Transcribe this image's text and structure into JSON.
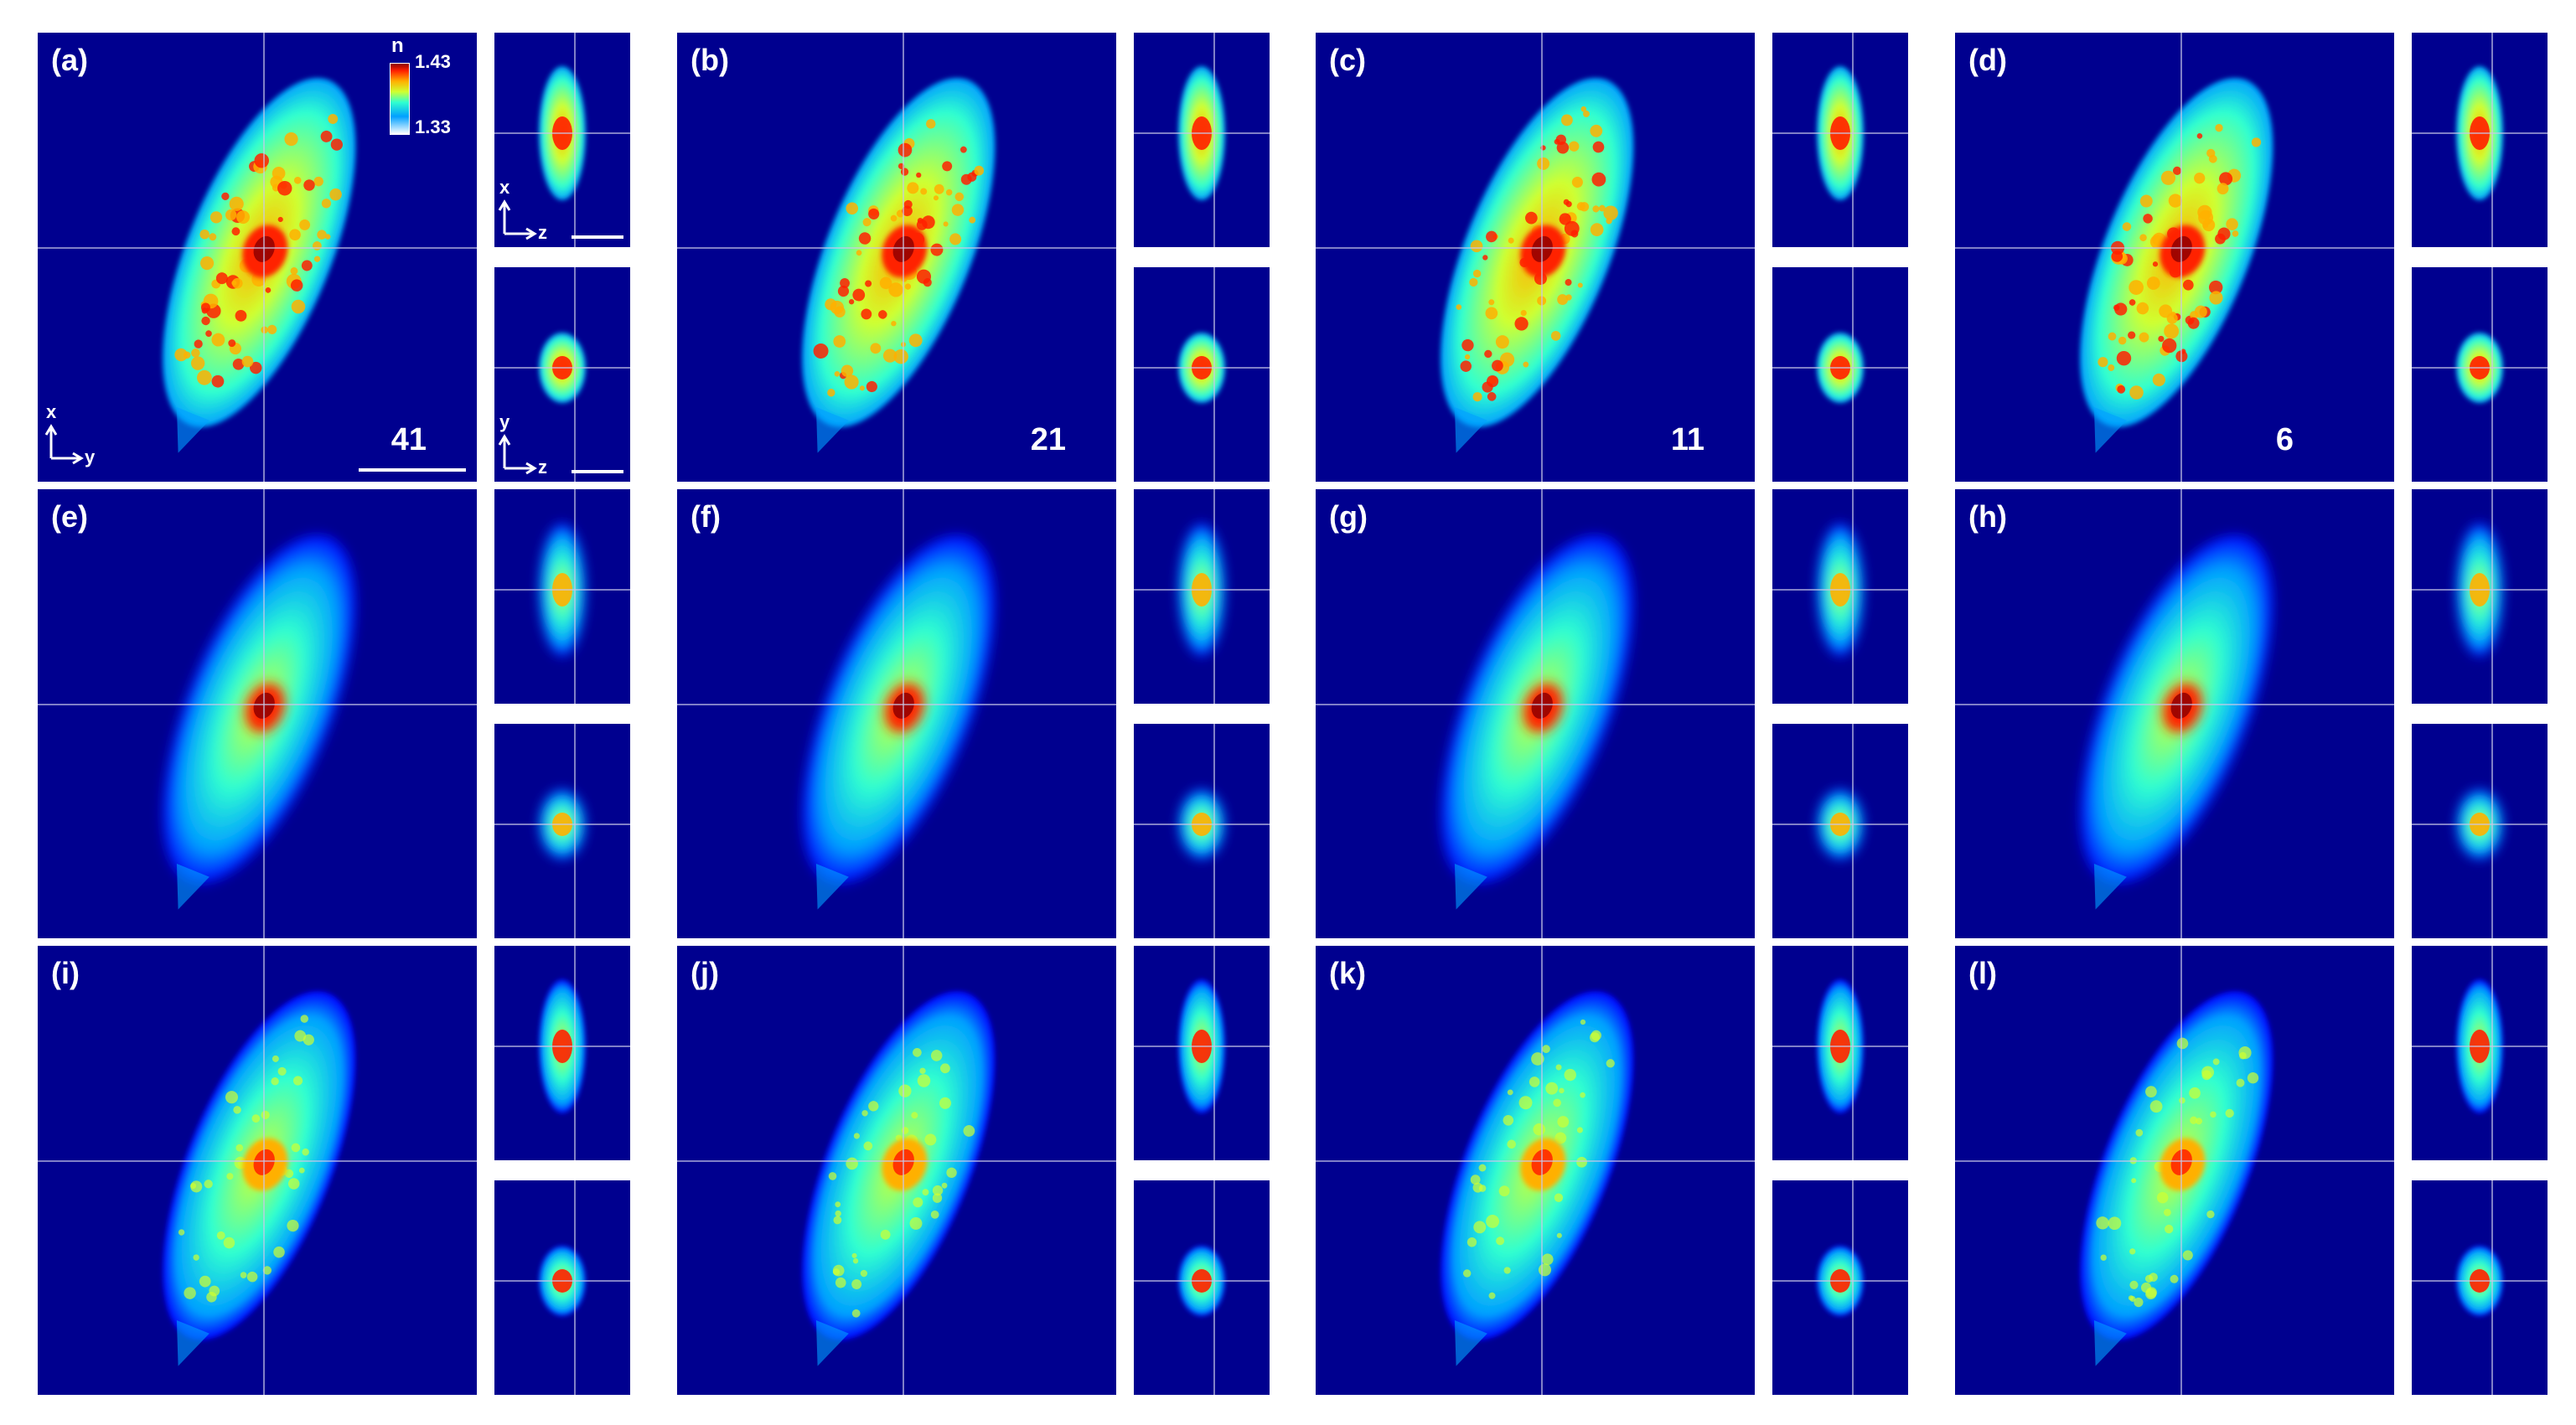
{
  "figure": {
    "colorbar": {
      "symbol": "n",
      "max_label": "1.43",
      "min_label": "1.33"
    },
    "axes": {
      "main": {
        "vertical": "x",
        "horizontal": "y"
      },
      "side_top": {
        "vertical": "x",
        "horizontal": "z"
      },
      "side_bottom": {
        "vertical": "y",
        "horizontal": "z"
      }
    },
    "colormap": [
      "#00008f",
      "#0000ff",
      "#00a0ff",
      "#30ffd0",
      "#d0ff30",
      "#ffb000",
      "#ff2000",
      "#8f0000"
    ],
    "rows": [
      {
        "style": "speckled",
        "panels": [
          {
            "label": "(a)",
            "number": "41"
          },
          {
            "label": "(b)",
            "number": "21"
          },
          {
            "label": "(c)",
            "number": "11"
          },
          {
            "label": "(d)",
            "number": "6"
          }
        ]
      },
      {
        "style": "blurred",
        "panels": [
          {
            "label": "(e)"
          },
          {
            "label": "(f)"
          },
          {
            "label": "(g)"
          },
          {
            "label": "(h)"
          }
        ]
      },
      {
        "style": "textured",
        "panels": [
          {
            "label": "(i)"
          },
          {
            "label": "(j)"
          },
          {
            "label": "(k)"
          },
          {
            "label": "(l)"
          }
        ]
      }
    ]
  }
}
